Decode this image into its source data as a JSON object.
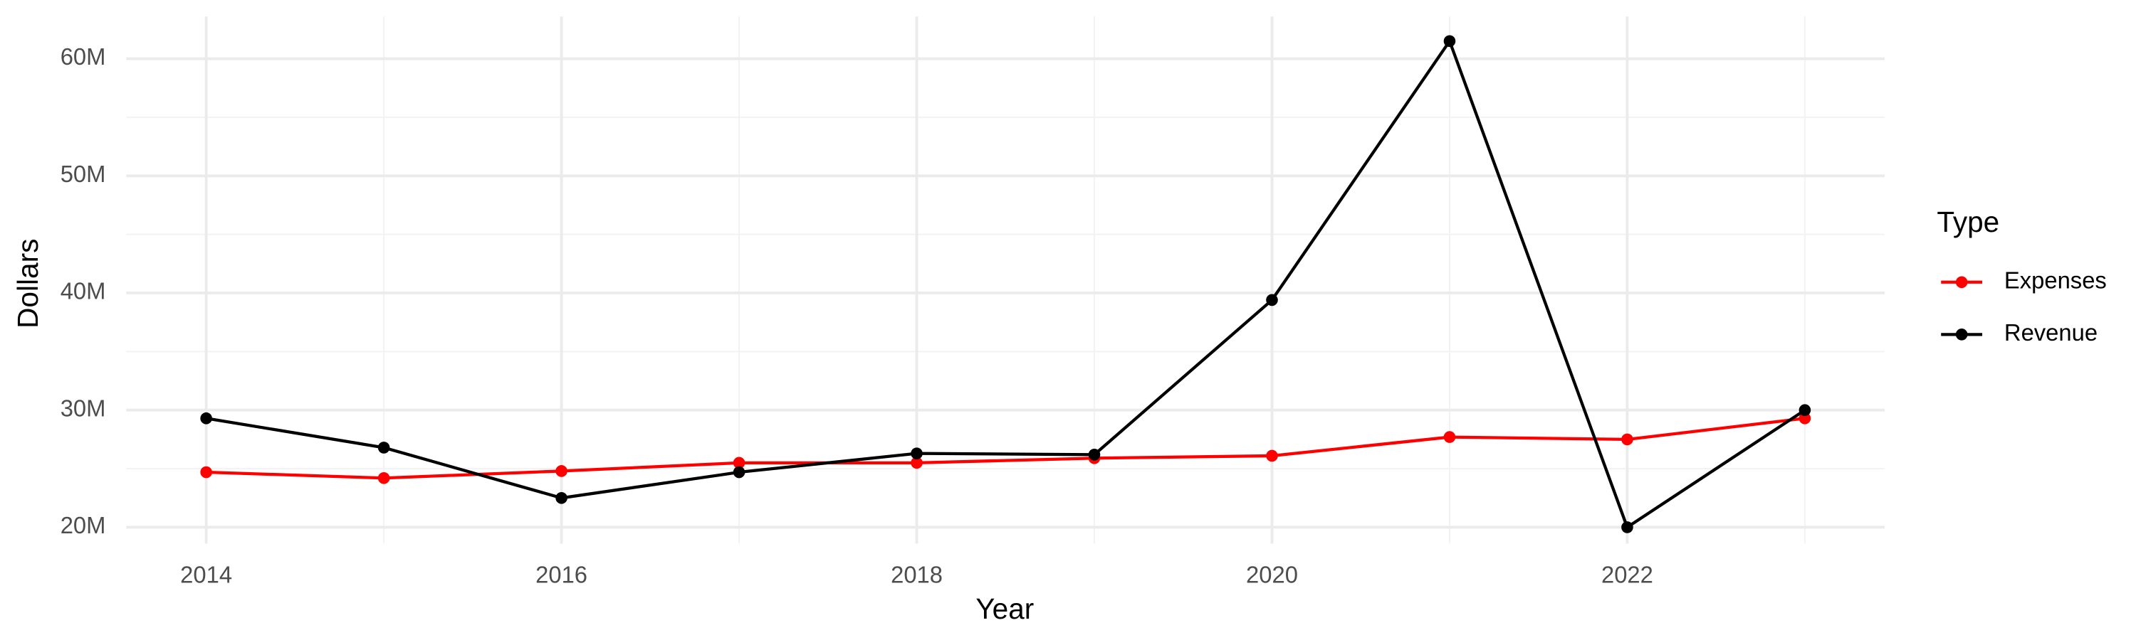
{
  "chart_data": {
    "type": "line",
    "x_label": "Year",
    "y_label": "Dollars",
    "legend_title": "Type",
    "legend_position": "right",
    "grid": true,
    "x": [
      2014,
      2015,
      2016,
      2017,
      2018,
      2019,
      2020,
      2021,
      2022,
      2023
    ],
    "xlim": [
      2013.55,
      2023.45
    ],
    "xticks": [
      2014,
      2016,
      2018,
      2020,
      2022
    ],
    "ylim": [
      18600000,
      63600000
    ],
    "yticks": [
      {
        "value": 20000000,
        "label": "20M"
      },
      {
        "value": 30000000,
        "label": "30M"
      },
      {
        "value": 40000000,
        "label": "40M"
      },
      {
        "value": 50000000,
        "label": "50M"
      },
      {
        "value": 60000000,
        "label": "60M"
      }
    ],
    "series": [
      {
        "name": "Expenses",
        "color": "#ff0000",
        "values": [
          24700000,
          24200000,
          24800000,
          25500000,
          25500000,
          25900000,
          26100000,
          27700000,
          27500000,
          29300000
        ]
      },
      {
        "name": "Revenue",
        "color": "#000000",
        "values": [
          29300000,
          26800000,
          22500000,
          24700000,
          26300000,
          26200000,
          39400000,
          61500000,
          20000000,
          30000000
        ]
      }
    ]
  }
}
